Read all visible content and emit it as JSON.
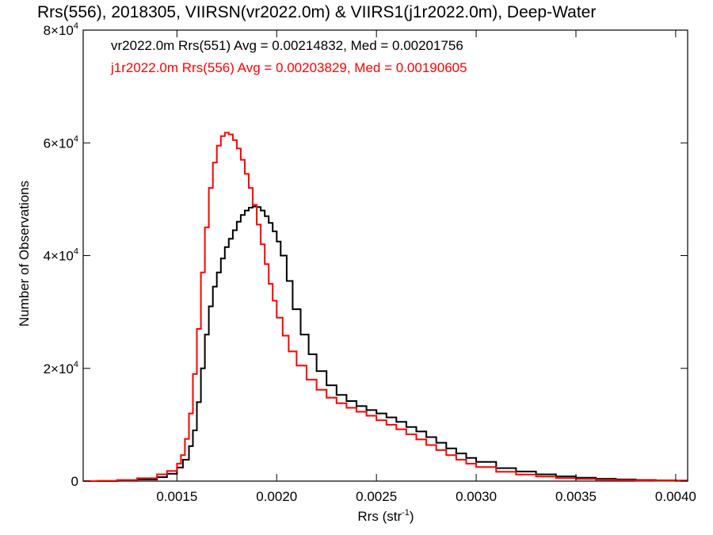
{
  "chart_data": {
    "type": "line",
    "title": "Rrs(556), 2018305, VIIRSN(vr2022.0m) & VIIRS1(j1r2022.0m), Deep-Water",
    "xlabel": "Rrs (str",
    "xlabel_sup": "-1",
    "xlabel_suffix": ")",
    "ylabel": "Number of Observations",
    "xlim": [
      0.00103,
      0.00406
    ],
    "ylim": [
      0,
      80000
    ],
    "grid": false,
    "x_ticks": [
      {
        "value": 0.0015,
        "label": "0.0015"
      },
      {
        "value": 0.002,
        "label": "0.0020"
      },
      {
        "value": 0.0025,
        "label": "0.0025"
      },
      {
        "value": 0.003,
        "label": "0.0030"
      },
      {
        "value": 0.0035,
        "label": "0.0035"
      },
      {
        "value": 0.004,
        "label": "0.0040"
      }
    ],
    "y_ticks": [
      {
        "value": 0,
        "label": "0",
        "base": "",
        "exp": ""
      },
      {
        "value": 20000,
        "label": "2×10",
        "base": "2×10",
        "exp": "4"
      },
      {
        "value": 40000,
        "label": "4×10",
        "base": "4×10",
        "exp": "4"
      },
      {
        "value": 60000,
        "label": "6×10",
        "base": "6×10",
        "exp": "4"
      },
      {
        "value": 80000,
        "label": "8×10",
        "base": "8×10",
        "exp": "4"
      }
    ],
    "legend_position": "top-left",
    "series": [
      {
        "name": "vr2022.0m Rrs(551) Avg = 0.00214832, Med = 0.00201756",
        "color": "#000000",
        "x": [
          0.00103,
          0.0011,
          0.0012,
          0.0013,
          0.0014,
          0.00145,
          0.0015,
          0.00153,
          0.00156,
          0.00158,
          0.0016,
          0.00162,
          0.00164,
          0.00166,
          0.00168,
          0.0017,
          0.00172,
          0.00174,
          0.00176,
          0.00178,
          0.0018,
          0.00182,
          0.00184,
          0.00186,
          0.00188,
          0.0019,
          0.00192,
          0.00194,
          0.00196,
          0.00198,
          0.002,
          0.00202,
          0.00205,
          0.00208,
          0.00212,
          0.00216,
          0.0022,
          0.00225,
          0.0023,
          0.00235,
          0.0024,
          0.00245,
          0.0025,
          0.00255,
          0.0026,
          0.00265,
          0.0027,
          0.00275,
          0.0028,
          0.00285,
          0.0029,
          0.00295,
          0.003,
          0.0031,
          0.0032,
          0.0033,
          0.0034,
          0.0035,
          0.0036,
          0.0037,
          0.0038,
          0.0039,
          0.004,
          0.00406
        ],
        "y": [
          0,
          0,
          100,
          300,
          700,
          1300,
          2400,
          3800,
          6200,
          9000,
          14000,
          20000,
          26000,
          31000,
          34500,
          37000,
          39500,
          41500,
          43000,
          44500,
          46000,
          47200,
          48000,
          48500,
          48700,
          48600,
          48000,
          47000,
          45800,
          44300,
          42500,
          40000,
          35500,
          30500,
          26000,
          22500,
          19500,
          17000,
          15300,
          14200,
          13300,
          12600,
          12000,
          11300,
          10500,
          9600,
          8800,
          7800,
          6800,
          5800,
          4900,
          4100,
          3400,
          2300,
          1700,
          1200,
          850,
          600,
          420,
          300,
          200,
          130,
          80,
          50
        ]
      },
      {
        "name": "j1r2022.0m Rrs(556) Avg = 0.00203829, Med = 0.00190605",
        "color": "#ff0000",
        "x": [
          0.00103,
          0.0011,
          0.0012,
          0.0013,
          0.0014,
          0.00145,
          0.0015,
          0.00152,
          0.00154,
          0.00156,
          0.00158,
          0.0016,
          0.00162,
          0.00164,
          0.00166,
          0.00168,
          0.0017,
          0.00172,
          0.00174,
          0.00176,
          0.00178,
          0.0018,
          0.00182,
          0.00184,
          0.00186,
          0.00188,
          0.0019,
          0.00192,
          0.00194,
          0.00196,
          0.00198,
          0.002,
          0.00203,
          0.00206,
          0.0021,
          0.00215,
          0.0022,
          0.00225,
          0.0023,
          0.00235,
          0.0024,
          0.00245,
          0.0025,
          0.00255,
          0.0026,
          0.00265,
          0.0027,
          0.00275,
          0.0028,
          0.00285,
          0.0029,
          0.00295,
          0.003,
          0.0031,
          0.0032,
          0.0033,
          0.0034,
          0.0035,
          0.0036,
          0.0037,
          0.0038,
          0.0039,
          0.004,
          0.00406
        ],
        "y": [
          0,
          50,
          200,
          500,
          1200,
          1800,
          3100,
          4600,
          7500,
          12000,
          19000,
          27000,
          37000,
          45000,
          52000,
          56500,
          59500,
          61200,
          61800,
          61500,
          60500,
          59000,
          57000,
          54500,
          52000,
          49000,
          45500,
          42000,
          38500,
          35000,
          32000,
          29000,
          25800,
          23000,
          20500,
          18000,
          16200,
          14800,
          13800,
          13000,
          12300,
          11600,
          10800,
          10000,
          9200,
          8300,
          7400,
          6400,
          5500,
          4600,
          3800,
          3100,
          2500,
          1650,
          1150,
          800,
          550,
          380,
          260,
          170,
          110,
          70,
          40,
          20
        ]
      }
    ]
  }
}
